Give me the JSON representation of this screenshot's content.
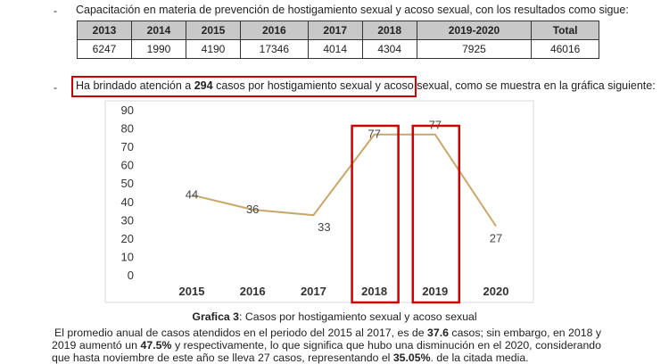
{
  "bullet1": {
    "marker": "-",
    "text": "Capacitación en materia de prevención de hostigamiento sexual y acoso sexual, con los resultados como sigue:"
  },
  "table": {
    "headers": [
      "2013",
      "2014",
      "2015",
      "2016",
      "2017",
      "2018",
      "2019-2020",
      "Total"
    ],
    "values": [
      "6247",
      "1990",
      "4190",
      "17346",
      "4014",
      "4304",
      "7925",
      "46016"
    ]
  },
  "bullet2": {
    "marker": "-",
    "pre": "Ha brindado atención a ",
    "bold": "294",
    "post": " casos por hostigamiento sexual y acoso sexual,",
    "rest": " como se muestra en la gráfica siguiente:"
  },
  "chart_data": {
    "type": "line",
    "categories": [
      "2015",
      "2016",
      "2017",
      "2018",
      "2019",
      "2020"
    ],
    "values": [
      44,
      36,
      33,
      77,
      77,
      27
    ],
    "data_labels": [
      "44",
      "36",
      "33",
      "77",
      "77",
      "27"
    ],
    "yticks": [
      "0",
      "10",
      "20",
      "30",
      "40",
      "50",
      "60",
      "70",
      "80",
      "90"
    ],
    "ylim": [
      0,
      90
    ],
    "line_color": "#c8a86a",
    "highlight_color": "#cc0000",
    "highlighted": [
      "2018",
      "2019"
    ],
    "grid": false
  },
  "caption": {
    "label": "Grafica 3",
    "text": ": Casos por hostigamiento sexual y acoso sexual"
  },
  "paragraph": {
    "p1": "El promedio anual de casos atendidos en el periodo del 2015 al 2017, es de ",
    "b1": "37.6",
    "p2": " casos; sin embargo, en 2018 y 2019 aumentó un ",
    "b2": "47.5%",
    "p3": " y respectivamente, lo que significa que hubo una disminución en el 2020, considerando que hasta noviembre de este año se lleva 27 casos, representando el ",
    "b3": "35.05%",
    "p4": ". de la citada media."
  }
}
